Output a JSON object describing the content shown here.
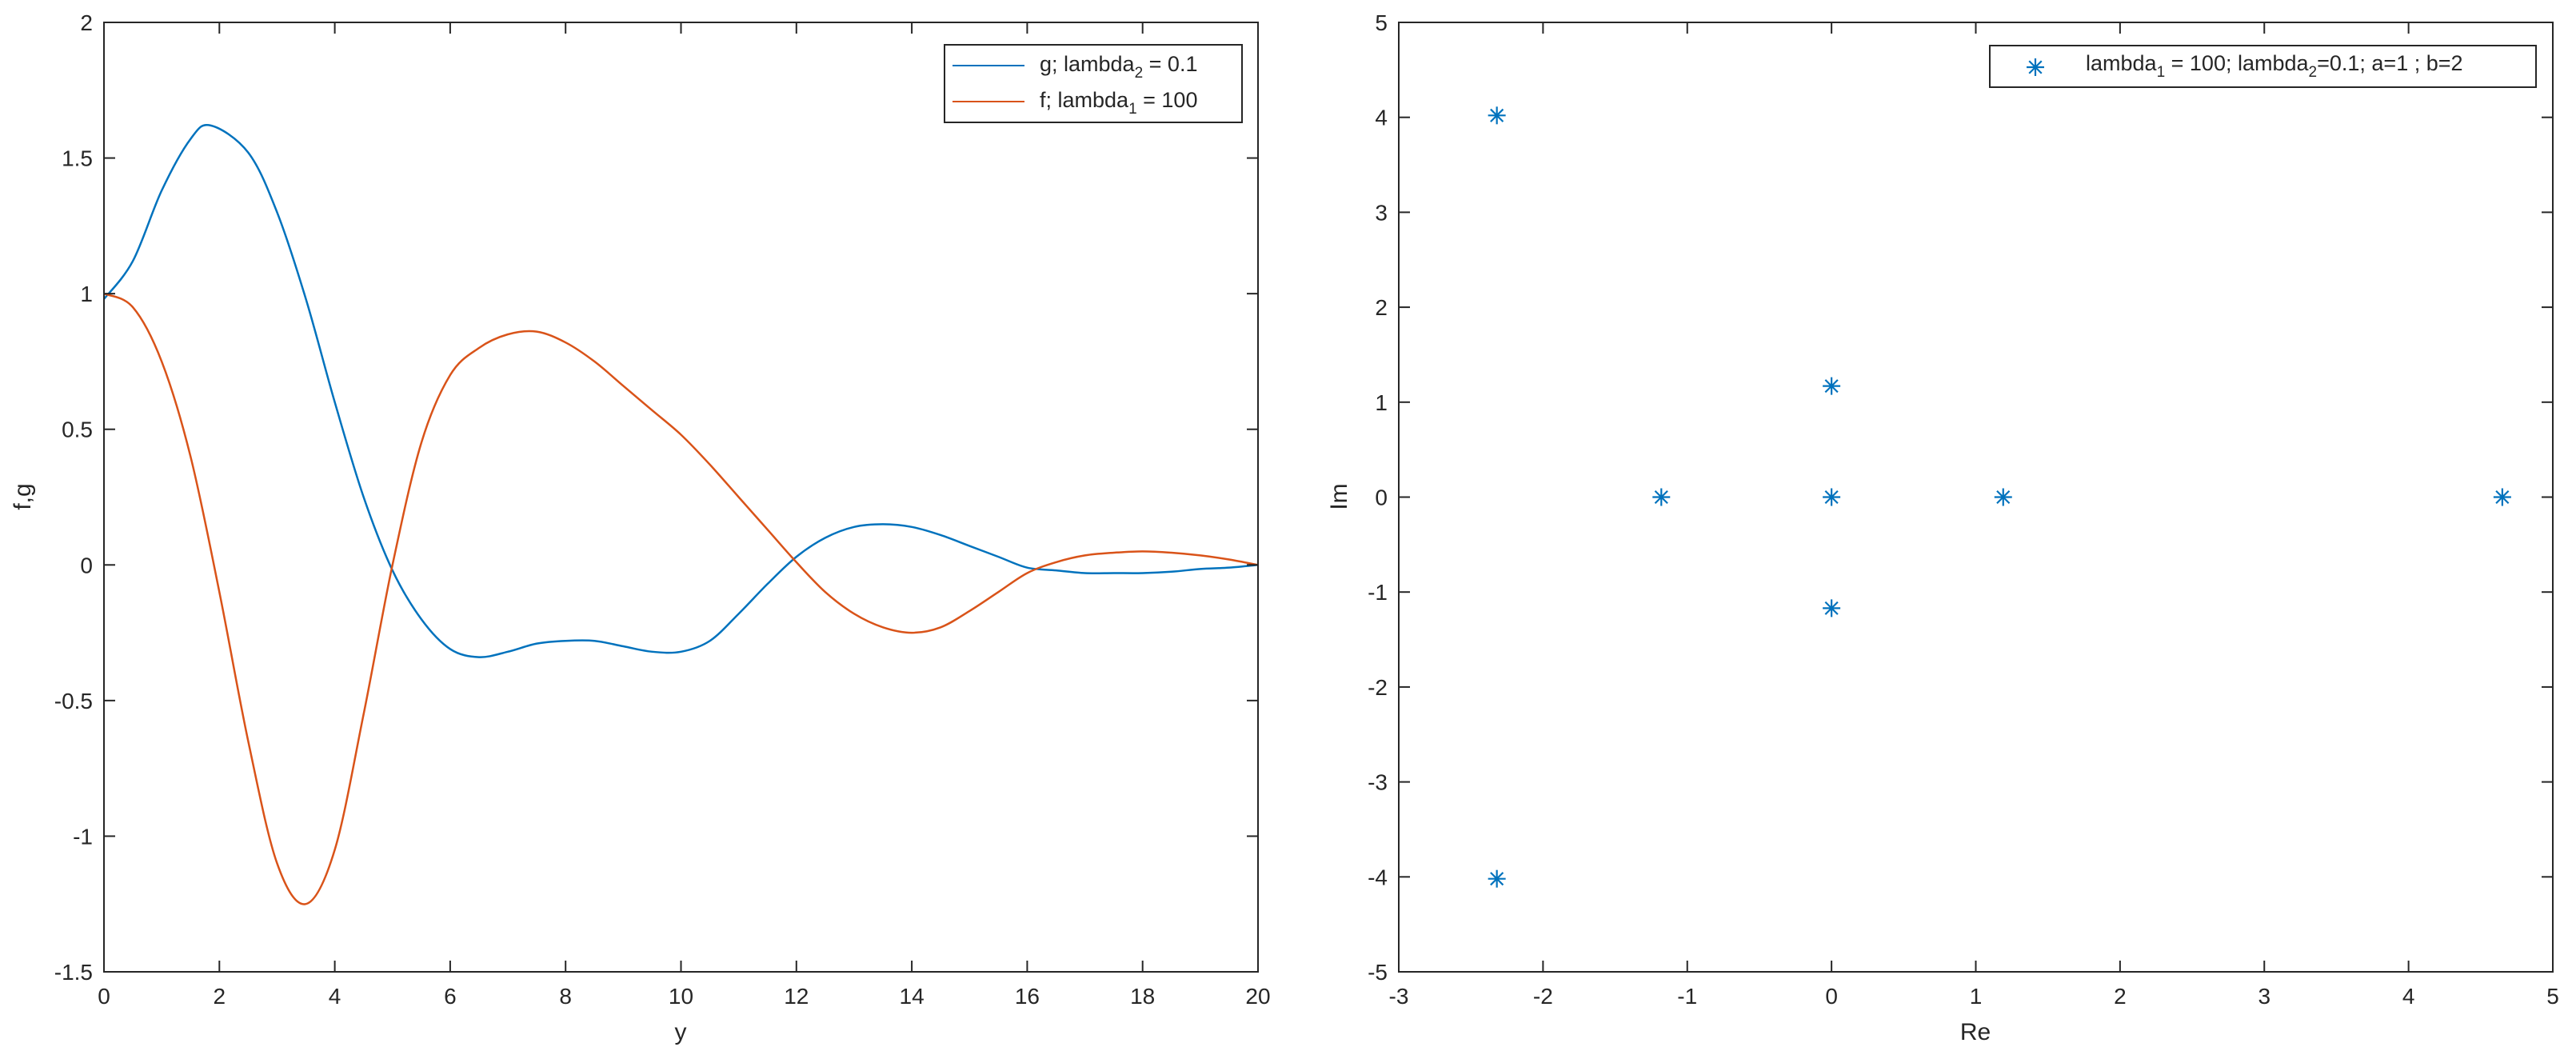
{
  "chart_data": [
    {
      "type": "line",
      "xlabel": "y",
      "ylabel": "f,g",
      "xlim": [
        0,
        20
      ],
      "ylim": [
        -1.5,
        2
      ],
      "x_ticks": [
        0,
        2,
        4,
        6,
        8,
        10,
        12,
        14,
        16,
        18,
        20
      ],
      "y_ticks": [
        -1.5,
        -1,
        -0.5,
        0,
        0.5,
        1,
        1.5,
        2
      ],
      "grid": false,
      "legend_position": "top-right",
      "series": [
        {
          "name": "g; lambda",
          "name_subscript": "2",
          "name_suffix": " = 0.1",
          "color": "#0072bd",
          "x": [
            0,
            0.5,
            1,
            1.5,
            1.85,
            2.5,
            3,
            3.5,
            4,
            4.5,
            5,
            5.5,
            6,
            6.5,
            7,
            7.5,
            8,
            8.5,
            9,
            9.5,
            10,
            10.5,
            11,
            11.5,
            12,
            12.5,
            13,
            13.5,
            14,
            14.5,
            15,
            15.5,
            16,
            16.5,
            17,
            17.5,
            18,
            18.5,
            19,
            19.5,
            20
          ],
          "y": [
            0.98,
            1.12,
            1.38,
            1.57,
            1.62,
            1.52,
            1.3,
            0.98,
            0.6,
            0.25,
            -0.02,
            -0.2,
            -0.31,
            -0.34,
            -0.32,
            -0.29,
            -0.28,
            -0.28,
            -0.3,
            -0.32,
            -0.32,
            -0.28,
            -0.18,
            -0.07,
            0.03,
            0.1,
            0.14,
            0.15,
            0.14,
            0.11,
            0.07,
            0.03,
            -0.01,
            -0.02,
            -0.03,
            -0.03,
            -0.03,
            -0.025,
            -0.015,
            -0.01,
            0
          ]
        },
        {
          "name": "f; lambda",
          "name_subscript": "1",
          "name_suffix": " = 100",
          "color": "#d95319",
          "x": [
            0,
            0.5,
            1,
            1.5,
            2,
            2.5,
            3,
            3.5,
            4,
            4.5,
            5,
            5.5,
            6,
            6.5,
            7,
            7.5,
            8,
            8.5,
            9,
            9.5,
            10,
            10.5,
            11,
            11.5,
            12,
            12.5,
            13,
            13.5,
            14,
            14.5,
            15,
            15.5,
            16,
            16.5,
            17,
            17.5,
            18,
            18.5,
            19,
            19.5,
            20
          ],
          "y": [
            1.0,
            0.95,
            0.75,
            0.4,
            -0.1,
            -0.65,
            -1.1,
            -1.25,
            -1.05,
            -0.55,
            0.0,
            0.45,
            0.7,
            0.8,
            0.85,
            0.86,
            0.82,
            0.75,
            0.66,
            0.57,
            0.48,
            0.37,
            0.25,
            0.13,
            0.01,
            -0.1,
            -0.18,
            -0.23,
            -0.25,
            -0.23,
            -0.17,
            -0.1,
            -0.03,
            0.01,
            0.035,
            0.045,
            0.05,
            0.045,
            0.035,
            0.02,
            0.0
          ]
        }
      ]
    },
    {
      "type": "scatter",
      "xlabel": "Re",
      "ylabel": "Im",
      "xlim": [
        -3,
        5
      ],
      "ylim": [
        -5,
        5
      ],
      "x_ticks": [
        -3,
        -2,
        -1,
        0,
        1,
        2,
        3,
        4,
        5
      ],
      "y_ticks": [
        -5,
        -4,
        -3,
        -2,
        -1,
        0,
        1,
        2,
        3,
        4,
        5
      ],
      "grid": false,
      "legend_position": "top-right",
      "marker": "asterisk",
      "series": [
        {
          "name_parts": [
            "lambda",
            "1",
            " = 100; lambda",
            "2",
            "=0.1; a=1 ; b=2"
          ],
          "color": "#0072bd",
          "x": [
            -2.32,
            -2.32,
            -1.18,
            0.0,
            0.0,
            0.0,
            1.19,
            4.65
          ],
          "y": [
            4.02,
            -4.02,
            0.0,
            1.17,
            0.0,
            -1.17,
            0.0,
            0.0
          ]
        }
      ]
    }
  ]
}
